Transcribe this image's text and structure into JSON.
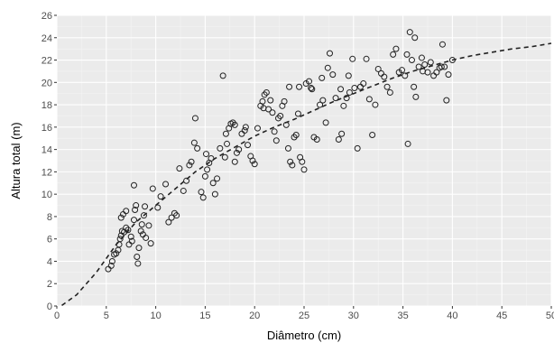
{
  "chart_data": {
    "type": "scatter",
    "xlabel": "Diâmetro (cm)",
    "ylabel": "Altura total (m)",
    "xlim": [
      0,
      50
    ],
    "ylim": [
      0,
      26
    ],
    "x_ticks": [
      0,
      5,
      10,
      15,
      20,
      25,
      30,
      35,
      40,
      45,
      50
    ],
    "y_ticks": [
      0,
      2,
      4,
      6,
      8,
      10,
      12,
      14,
      16,
      18,
      20,
      22,
      24,
      26
    ],
    "grid": true,
    "colors": {
      "panel": "#ebebeb",
      "grid_major": "#ffffff",
      "grid_minor": "#f4f4f4",
      "points": "#222222",
      "curve": "#222222"
    },
    "series": [
      {
        "type": "scatter",
        "points": [
          [
            5.2,
            3.3
          ],
          [
            5.5,
            3.6
          ],
          [
            5.6,
            4.0
          ],
          [
            5.8,
            4.6
          ],
          [
            6.0,
            4.7
          ],
          [
            6.2,
            5.0
          ],
          [
            6.3,
            5.5
          ],
          [
            6.4,
            6.0
          ],
          [
            6.5,
            6.3
          ],
          [
            6.6,
            6.7
          ],
          [
            6.8,
            6.6
          ],
          [
            7.0,
            7.0
          ],
          [
            6.5,
            7.9
          ],
          [
            6.7,
            8.2
          ],
          [
            7.0,
            8.5
          ],
          [
            7.2,
            6.8
          ],
          [
            7.3,
            5.5
          ],
          [
            7.5,
            6.2
          ],
          [
            7.6,
            5.8
          ],
          [
            7.8,
            7.7
          ],
          [
            7.9,
            8.6
          ],
          [
            8.0,
            9.0
          ],
          [
            8.1,
            4.4
          ],
          [
            8.2,
            3.8
          ],
          [
            8.3,
            5.2
          ],
          [
            8.5,
            6.7
          ],
          [
            8.6,
            7.3
          ],
          [
            8.7,
            6.4
          ],
          [
            8.8,
            8.1
          ],
          [
            8.9,
            8.9
          ],
          [
            9.0,
            6.1
          ],
          [
            9.3,
            7.2
          ],
          [
            9.5,
            5.6
          ],
          [
            7.8,
            10.8
          ],
          [
            9.7,
            10.5
          ],
          [
            10.2,
            8.8
          ],
          [
            10.5,
            9.8
          ],
          [
            11.0,
            10.9
          ],
          [
            11.3,
            7.5
          ],
          [
            11.6,
            7.9
          ],
          [
            11.9,
            8.3
          ],
          [
            12.1,
            8.1
          ],
          [
            12.4,
            12.3
          ],
          [
            12.8,
            10.3
          ],
          [
            13.1,
            11.2
          ],
          [
            13.4,
            12.6
          ],
          [
            13.6,
            12.9
          ],
          [
            13.9,
            14.6
          ],
          [
            14.2,
            14.1
          ],
          [
            14.0,
            16.8
          ],
          [
            14.6,
            10.2
          ],
          [
            14.8,
            9.7
          ],
          [
            15.0,
            11.6
          ],
          [
            15.2,
            12.2
          ],
          [
            15.4,
            12.8
          ],
          [
            15.6,
            13.2
          ],
          [
            15.8,
            11.0
          ],
          [
            16.0,
            10.0
          ],
          [
            16.2,
            11.4
          ],
          [
            16.5,
            14.1
          ],
          [
            16.8,
            20.6
          ],
          [
            17.0,
            13.3
          ],
          [
            17.2,
            14.5
          ],
          [
            17.4,
            15.9
          ],
          [
            17.6,
            16.3
          ],
          [
            17.8,
            16.4
          ],
          [
            18.0,
            12.9
          ],
          [
            18.2,
            13.7
          ],
          [
            18.4,
            14.0
          ],
          [
            18.7,
            15.4
          ],
          [
            19.0,
            15.7
          ],
          [
            19.3,
            14.4
          ],
          [
            19.6,
            13.4
          ],
          [
            19.8,
            13.0
          ],
          [
            20.0,
            12.7
          ],
          [
            20.3,
            15.9
          ],
          [
            20.6,
            17.9
          ],
          [
            20.8,
            18.3
          ],
          [
            21.0,
            18.9
          ],
          [
            21.2,
            19.1
          ],
          [
            21.4,
            17.6
          ],
          [
            21.6,
            18.4
          ],
          [
            21.8,
            17.3
          ],
          [
            22.0,
            15.6
          ],
          [
            22.2,
            14.8
          ],
          [
            22.4,
            16.8
          ],
          [
            22.6,
            17.0
          ],
          [
            22.8,
            17.9
          ],
          [
            23.0,
            18.3
          ],
          [
            23.2,
            16.2
          ],
          [
            23.4,
            14.1
          ],
          [
            23.6,
            12.9
          ],
          [
            23.8,
            12.6
          ],
          [
            24.0,
            15.1
          ],
          [
            24.2,
            15.3
          ],
          [
            24.4,
            17.2
          ],
          [
            24.6,
            13.3
          ],
          [
            24.8,
            12.9
          ],
          [
            25.0,
            12.2
          ],
          [
            24.5,
            19.6
          ],
          [
            25.2,
            19.9
          ],
          [
            25.5,
            20.1
          ],
          [
            25.7,
            19.5
          ],
          [
            26.0,
            15.1
          ],
          [
            26.3,
            14.9
          ],
          [
            26.6,
            18.0
          ],
          [
            26.9,
            18.4
          ],
          [
            27.2,
            16.4
          ],
          [
            27.4,
            21.3
          ],
          [
            27.6,
            22.6
          ],
          [
            27.9,
            20.7
          ],
          [
            28.2,
            18.6
          ],
          [
            28.5,
            14.9
          ],
          [
            28.8,
            15.4
          ],
          [
            29.0,
            17.9
          ],
          [
            29.3,
            18.6
          ],
          [
            29.6,
            19.1
          ],
          [
            29.9,
            22.1
          ],
          [
            30.1,
            19.5
          ],
          [
            30.4,
            14.1
          ],
          [
            30.7,
            19.6
          ],
          [
            31.0,
            19.9
          ],
          [
            31.3,
            22.1
          ],
          [
            31.6,
            18.5
          ],
          [
            31.9,
            15.3
          ],
          [
            32.2,
            18.0
          ],
          [
            32.5,
            21.2
          ],
          [
            32.8,
            20.8
          ],
          [
            33.1,
            20.5
          ],
          [
            33.4,
            19.6
          ],
          [
            33.7,
            19.1
          ],
          [
            34.0,
            22.5
          ],
          [
            34.3,
            23.0
          ],
          [
            34.6,
            20.9
          ],
          [
            34.9,
            21.1
          ],
          [
            35.2,
            20.6
          ],
          [
            35.5,
            14.5
          ],
          [
            35.7,
            24.5
          ],
          [
            35.9,
            22.0
          ],
          [
            36.1,
            19.6
          ],
          [
            36.3,
            18.7
          ],
          [
            36.6,
            21.4
          ],
          [
            36.9,
            22.2
          ],
          [
            37.2,
            21.6
          ],
          [
            37.5,
            20.9
          ],
          [
            37.8,
            21.8
          ],
          [
            38.1,
            20.6
          ],
          [
            38.4,
            20.9
          ],
          [
            38.7,
            21.3
          ],
          [
            39.0,
            23.4
          ],
          [
            39.2,
            21.4
          ],
          [
            39.4,
            18.4
          ],
          [
            39.6,
            20.7
          ],
          [
            40.0,
            22.0
          ],
          [
            35.4,
            22.5
          ],
          [
            36.2,
            24.0
          ],
          [
            38.9,
            21.4
          ],
          [
            37.0,
            21.0
          ],
          [
            29.5,
            20.6
          ],
          [
            28.7,
            19.4
          ],
          [
            26.8,
            20.4
          ],
          [
            25.8,
            19.4
          ],
          [
            23.5,
            19.6
          ],
          [
            20.9,
            17.7
          ],
          [
            19.1,
            16.0
          ],
          [
            18.0,
            16.2
          ],
          [
            17.1,
            15.4
          ],
          [
            15.1,
            13.6
          ]
        ]
      },
      {
        "type": "line",
        "style": "dashed",
        "points": [
          [
            0.5,
            0.05
          ],
          [
            2,
            1.0
          ],
          [
            4,
            3.0
          ],
          [
            6,
            5.5
          ],
          [
            8,
            7.5
          ],
          [
            10,
            9.0
          ],
          [
            12,
            10.5
          ],
          [
            14,
            12.0
          ],
          [
            16,
            13.2
          ],
          [
            18,
            14.2
          ],
          [
            20,
            15.2
          ],
          [
            22,
            16.0
          ],
          [
            24,
            16.7
          ],
          [
            26,
            17.5
          ],
          [
            28,
            18.3
          ],
          [
            30,
            19.0
          ],
          [
            32,
            19.7
          ],
          [
            34,
            20.4
          ],
          [
            36,
            21.0
          ],
          [
            38,
            21.5
          ],
          [
            40,
            22.0
          ],
          [
            42,
            22.4
          ],
          [
            44,
            22.7
          ],
          [
            46,
            23.0
          ],
          [
            48,
            23.2
          ],
          [
            50,
            23.5
          ]
        ]
      }
    ]
  }
}
